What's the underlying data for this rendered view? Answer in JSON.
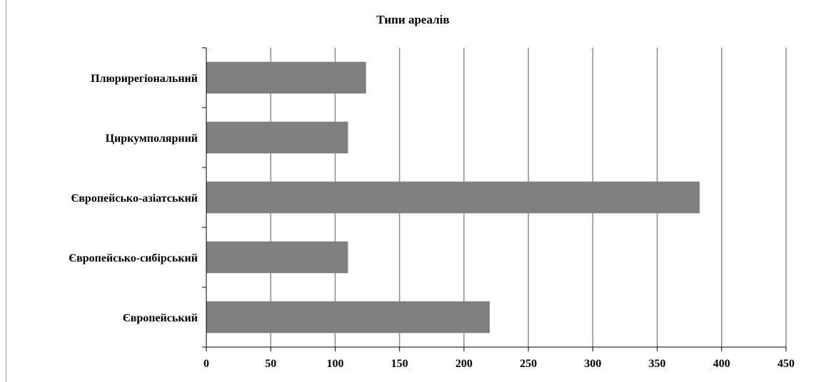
{
  "chart_data": {
    "type": "bar",
    "orientation": "horizontal",
    "title": "Типи ареалів",
    "categories": [
      "Плюрирегіональний",
      "Циркумполярний",
      "Європейсько-азіатський",
      "Європейсько-сибірський",
      "Європейський"
    ],
    "values": [
      124,
      110,
      383,
      110,
      220
    ],
    "xlim": [
      0,
      450
    ],
    "xticks": [
      "0",
      "50",
      "100",
      "150",
      "200",
      "250",
      "300",
      "350",
      "400",
      "450"
    ],
    "grid": "vertical",
    "bar_color": "#808080",
    "grid_color": "#8c8c8c"
  }
}
